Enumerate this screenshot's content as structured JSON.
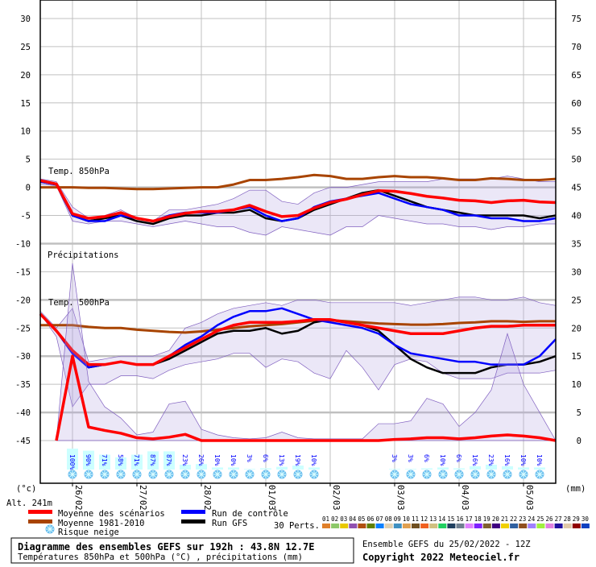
{
  "chart_data": {
    "type": "line",
    "title": "Diagramme des ensembles GEFS sur 192h : 43.8N 12.7E",
    "subtitle": "Températures 850hPa et 500hPa (°C) , précipitations (mm)",
    "run_label": "Ensemble GEFS du 25/02/2022 - 12Z",
    "copyright": "Copyright 2022 Meteociel.fr",
    "altitude": "Alt. 241m",
    "ylabel_left": "(°c)",
    "ylabel_right": "(mm)",
    "ylim_left": [
      -45,
      30
    ],
    "ylim_right": [
      0,
      75
    ],
    "yticks_left": [
      "30",
      "25",
      "20",
      "15",
      "10",
      "5",
      "0",
      "-5",
      "-10",
      "-15",
      "-20",
      "-25",
      "-30",
      "-35",
      "-40",
      "-45"
    ],
    "yticks_right": [
      "75",
      "70",
      "65",
      "60",
      "55",
      "50",
      "45",
      "40",
      "35",
      "30",
      "25",
      "20",
      "15",
      "10",
      "5",
      "0"
    ],
    "x_step_hours": 6,
    "x_dates": [
      "26/02",
      "27/02",
      "28/02",
      "01/03",
      "02/03",
      "03/03",
      "04/03",
      "05/03"
    ],
    "grid": true,
    "panel_labels": {
      "t850": "Temp. 850hPa",
      "precip": "Précipitations",
      "t500": "Temp. 500hPa"
    },
    "t850": {
      "mean": [
        1.2,
        0.6,
        -4.7,
        -5.5,
        -5.2,
        -4.5,
        -5.5,
        -6,
        -5.2,
        -4.6,
        -4.3,
        -4.3,
        -4,
        -3.2,
        -4.3,
        -5.2,
        -5,
        -3.7,
        -2.7,
        -2.1,
        -1.3,
        -0.6,
        -0.7,
        -1.1,
        -1.6,
        -1.9,
        -2.3,
        -2.4,
        -2.7,
        -2.4,
        -2.3,
        -2.6,
        -2.7
      ],
      "climatology": [
        0,
        0,
        0,
        -0.1,
        -0.1,
        -0.2,
        -0.3,
        -0.3,
        -0.2,
        -0.1,
        0,
        0,
        0.5,
        1.3,
        1.3,
        1.5,
        1.8,
        2.2,
        2,
        1.5,
        1.5,
        1.8,
        2,
        1.8,
        1.8,
        1.6,
        1.3,
        1.3,
        1.6,
        1.5,
        1.3,
        1.3,
        1.5
      ],
      "control": [
        1,
        0.5,
        -5,
        -6,
        -6,
        -5,
        -5.5,
        -6,
        -5,
        -4.5,
        -4.5,
        -4.5,
        -4,
        -3.5,
        -5,
        -6,
        -5.5,
        -3.5,
        -2.5,
        -2,
        -1.5,
        -1,
        -2,
        -3,
        -3.5,
        -4,
        -5,
        -5,
        -5.5,
        -5.5,
        -6,
        -6,
        -5.5
      ],
      "gfs": [
        1,
        0.5,
        -5,
        -6,
        -5.5,
        -5,
        -6,
        -6.5,
        -5.5,
        -5,
        -5,
        -4.5,
        -4.5,
        -4,
        -5.5,
        -6,
        -5.5,
        -4,
        -3,
        -2,
        -1,
        -0.5,
        -1.5,
        -2.5,
        -3.5,
        -4,
        -4.5,
        -5,
        -5,
        -5,
        -5,
        -5.5,
        -5
      ],
      "perts_max": [
        1.5,
        1,
        -3.5,
        -5.5,
        -5,
        -4,
        -5.5,
        -6,
        -4,
        -4,
        -3.5,
        -3,
        -2,
        -0.5,
        -0.5,
        -2.5,
        -3,
        -1,
        0,
        0,
        0.5,
        1,
        1,
        1,
        1,
        1.5,
        1.5,
        1.5,
        1.5,
        2,
        1.5,
        1,
        1
      ],
      "perts_min": [
        0.5,
        0.3,
        -6,
        -6.5,
        -6,
        -6,
        -6.5,
        -7,
        -6.5,
        -6,
        -6.5,
        -7,
        -7,
        -8,
        -8.5,
        -7,
        -7.5,
        -8,
        -8.5,
        -7,
        -7,
        -5,
        -5.5,
        -6,
        -6.5,
        -6.5,
        -7,
        -7,
        -7.5,
        -7,
        -7,
        -6.5,
        -6.5
      ]
    },
    "t500": {
      "mean": [
        -22.5,
        -25.5,
        -29,
        -31.5,
        -31.5,
        -31,
        -31.5,
        -31.5,
        -30,
        -28.5,
        -27,
        -25.5,
        -24.5,
        -24,
        -24,
        -24,
        -23.8,
        -23.5,
        -23.5,
        -24,
        -24.5,
        -25,
        -25.5,
        -26,
        -26,
        -26,
        -25.5,
        -25,
        -24.7,
        -24.7,
        -24.5,
        -24.5,
        -24.5
      ],
      "climatology": [
        -24.5,
        -24.5,
        -24.5,
        -24.8,
        -25,
        -25,
        -25.3,
        -25.5,
        -25.7,
        -25.8,
        -25.6,
        -25.3,
        -25,
        -24.7,
        -24.5,
        -24.3,
        -24,
        -23.7,
        -23.6,
        -23.8,
        -24,
        -24.2,
        -24.3,
        -24.4,
        -24.4,
        -24.3,
        -24.1,
        -24,
        -23.8,
        -23.8,
        -23.9,
        -23.8,
        -23.8
      ],
      "control": [
        -22.5,
        -25.5,
        -29.5,
        -32,
        -31.5,
        -31,
        -31.5,
        -31.5,
        -30,
        -28,
        -26.5,
        -24.5,
        -23,
        -22,
        -22,
        -21.5,
        -22.5,
        -23.5,
        -24,
        -24.5,
        -25,
        -26,
        -28,
        -29.5,
        -30,
        -30.5,
        -31,
        -31,
        -31.5,
        -31.5,
        -31.5,
        -30,
        -27
      ],
      "gfs": [
        -22.5,
        -25.5,
        -29.5,
        -32,
        -31.5,
        -31,
        -31.5,
        -31.5,
        -30.5,
        -29,
        -27.5,
        -26,
        -25.5,
        -25.5,
        -25,
        -26,
        -25.5,
        -24,
        -23.5,
        -24,
        -24.5,
        -25.5,
        -28,
        -30.5,
        -32,
        -33,
        -33,
        -33,
        -32,
        -31.5,
        -31.5,
        -31,
        -30
      ],
      "perts_max": [
        -22,
        -25,
        -21.5,
        -31,
        -30.5,
        -30,
        -30,
        -30,
        -29,
        -25,
        -24,
        -22.5,
        -21.5,
        -21,
        -20.5,
        -21,
        -20,
        -20,
        -20.5,
        -20.5,
        -20.5,
        -20.5,
        -20.5,
        -21,
        -20.5,
        -20,
        -19.5,
        -19.5,
        -20,
        -20,
        -19.5,
        -20.5,
        -21
      ],
      "perts_min": [
        -22.5,
        -26.5,
        -39,
        -35,
        -35,
        -33.5,
        -33.5,
        -34,
        -32.5,
        -31.5,
        -31,
        -30.5,
        -29.5,
        -29.5,
        -32,
        -30.5,
        -31,
        -33,
        -34,
        -29,
        -32,
        -36,
        -31.5,
        -30.5,
        -31,
        -33,
        -34,
        -34,
        -34,
        -33,
        -33,
        -33,
        -32.5
      ]
    },
    "precip_mm": {
      "mean": [
        null,
        0,
        15,
        2.4,
        1.8,
        1.3,
        0.5,
        0.3,
        0.6,
        1.1,
        0,
        0,
        0,
        0,
        0,
        0,
        0,
        0,
        0,
        0,
        0,
        0,
        0.2,
        0.3,
        0.5,
        0.5,
        0.3,
        0.5,
        0.8,
        1,
        0.8,
        0.5,
        0
      ],
      "perts_max": [
        null,
        0,
        31.5,
        10.5,
        6,
        4,
        1,
        1.5,
        6.5,
        7,
        2,
        1,
        0.5,
        0.3,
        0.5,
        1.5,
        0.5,
        0.3,
        0.3,
        0.3,
        0.3,
        3,
        3,
        3.5,
        7.5,
        6.5,
        2.5,
        5,
        9,
        19,
        10,
        5,
        0
      ]
    },
    "snow_risk": [
      {
        "date_index": 2,
        "pct": "100%",
        "value": 100
      },
      {
        "date_index": 3,
        "pct": "90%",
        "value": 90
      },
      {
        "date_index": 4,
        "pct": "71%",
        "value": 71
      },
      {
        "date_index": 5,
        "pct": "58%",
        "value": 58
      },
      {
        "date_index": 6,
        "pct": "71%",
        "value": 71
      },
      {
        "date_index": 7,
        "pct": "87%",
        "value": 87
      },
      {
        "date_index": 8,
        "pct": "87%",
        "value": 87
      },
      {
        "date_index": 9,
        "pct": "23%",
        "value": 23
      },
      {
        "date_index": 10,
        "pct": "26%",
        "value": 26
      },
      {
        "date_index": 11,
        "pct": "10%",
        "value": 10
      },
      {
        "date_index": 12,
        "pct": "10%",
        "value": 10
      },
      {
        "date_index": 13,
        "pct": "3%",
        "value": 3
      },
      {
        "date_index": 14,
        "pct": "6%",
        "value": 6
      },
      {
        "date_index": 15,
        "pct": "13%",
        "value": 13
      },
      {
        "date_index": 16,
        "pct": "19%",
        "value": 19
      },
      {
        "date_index": 17,
        "pct": "10%",
        "value": 10
      },
      {
        "date_index": 22,
        "pct": "3%",
        "value": 3
      },
      {
        "date_index": 23,
        "pct": "3%",
        "value": 3
      },
      {
        "date_index": 24,
        "pct": "6%",
        "value": 6
      },
      {
        "date_index": 25,
        "pct": "10%",
        "value": 10
      },
      {
        "date_index": 26,
        "pct": "6%",
        "value": 6
      },
      {
        "date_index": 27,
        "pct": "16%",
        "value": 16
      },
      {
        "date_index": 28,
        "pct": "23%",
        "value": 23
      },
      {
        "date_index": 29,
        "pct": "16%",
        "value": 16
      },
      {
        "date_index": 30,
        "pct": "10%",
        "value": 10
      },
      {
        "date_index": 31,
        "pct": "10%",
        "value": 10
      }
    ],
    "legend": {
      "mean": "Moyenne des scénarios",
      "climatology": "Moyenne 1981-2010",
      "snow": "Risque neige",
      "control": "Run de contrôle",
      "gfs": "Run GFS",
      "perts_label": "30 Perts."
    },
    "colors": {
      "mean": "#ff0000",
      "climatology": "#a84400",
      "control": "#0000ff",
      "gfs": "#000000",
      "snow_bar": "#ccffff",
      "snow_text": "#0000ff"
    },
    "perturbations": [
      {
        "id": "01",
        "color": "#e0802a"
      },
      {
        "id": "02",
        "color": "#8cc868"
      },
      {
        "id": "03",
        "color": "#e8c800"
      },
      {
        "id": "04",
        "color": "#9050b0"
      },
      {
        "id": "05",
        "color": "#b05010"
      },
      {
        "id": "06",
        "color": "#608000"
      },
      {
        "id": "07",
        "color": "#0a80ff"
      },
      {
        "id": "08",
        "color": "#e0d0b0"
      },
      {
        "id": "09",
        "color": "#4090c0"
      },
      {
        "id": "10",
        "color": "#e0a050"
      },
      {
        "id": "11",
        "color": "#705020"
      },
      {
        "id": "12",
        "color": "#f06020"
      },
      {
        "id": "13",
        "color": "#d0c080"
      },
      {
        "id": "14",
        "color": "#20d060"
      },
      {
        "id": "15",
        "color": "#204060"
      },
      {
        "id": "16",
        "color": "#708090"
      },
      {
        "id": "17",
        "color": "#e080ff"
      },
      {
        "id": "18",
        "color": "#8020ff"
      },
      {
        "id": "19",
        "color": "#806030"
      },
      {
        "id": "20",
        "color": "#400080"
      },
      {
        "id": "21",
        "color": "#f0d000"
      },
      {
        "id": "22",
        "color": "#3060a0"
      },
      {
        "id": "23",
        "color": "#905020"
      },
      {
        "id": "24",
        "color": "#a080ff"
      },
      {
        "id": "25",
        "color": "#a0f040"
      },
      {
        "id": "26",
        "color": "#e080e0"
      },
      {
        "id": "27",
        "color": "#2010a0"
      },
      {
        "id": "28",
        "color": "#e0c8a8"
      },
      {
        "id": "29",
        "color": "#900000"
      },
      {
        "id": "30",
        "color": "#1040c0"
      }
    ]
  }
}
